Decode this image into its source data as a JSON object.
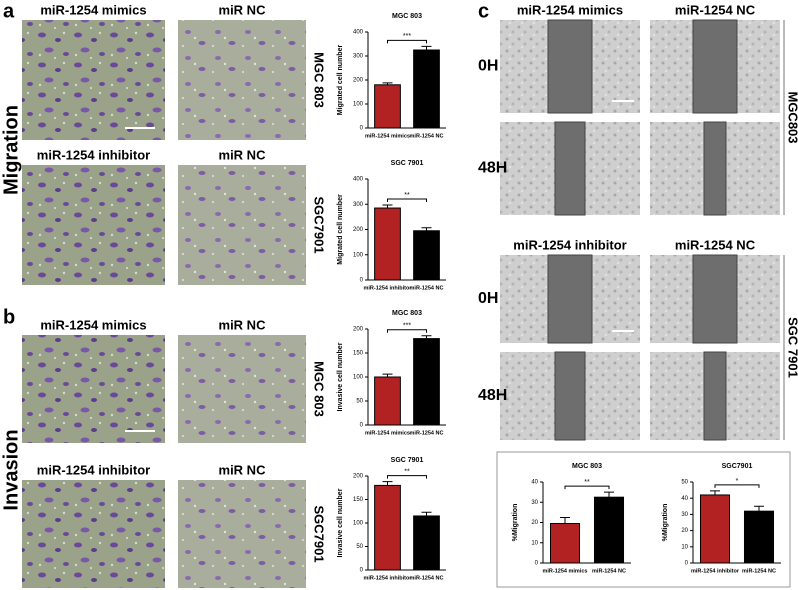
{
  "panel_a": {
    "label": "a",
    "side": "Migration",
    "rows": [
      {
        "captions": [
          "miR-1254 mimics",
          "miR NC"
        ],
        "cell_line": "MGC 803"
      },
      {
        "captions": [
          "miR-1254 inhibitor",
          "miR NC"
        ],
        "cell_line": "SGC7901"
      }
    ]
  },
  "panel_b": {
    "label": "b",
    "side": "Invasion",
    "rows": [
      {
        "captions": [
          "miR-1254 mimics",
          "miR NC"
        ],
        "cell_line": "MGC 803"
      },
      {
        "captions": [
          "miR-1254 inhibitor",
          "miR NC"
        ],
        "cell_line": "SGC7901"
      }
    ]
  },
  "panel_c": {
    "label": "c",
    "blocks": [
      {
        "captions": [
          "miR-1254 mimics",
          "miR-1254 NC"
        ],
        "cell_line": "MGC803",
        "times": [
          "0H",
          "48H"
        ]
      },
      {
        "captions": [
          "miR-1254 inhibitor",
          "miR-1254 NC"
        ],
        "cell_line": "SGC 7901",
        "times": [
          "0H",
          "48H"
        ]
      }
    ]
  },
  "chart_data": [
    {
      "type": "bar",
      "title": "MGC 803",
      "y_label": "Migrated cell number",
      "categories": [
        "miR-1254 mimics",
        "miR-1254 NC"
      ],
      "values": [
        180,
        325
      ],
      "errors": [
        8,
        15
      ],
      "colors": [
        "#b22222",
        "#000000"
      ],
      "ylim": [
        0,
        400
      ],
      "yticks": [
        0,
        100,
        200,
        300,
        400
      ],
      "significance": "***"
    },
    {
      "type": "bar",
      "title": "SGC 7901",
      "y_label": "Migrated cell number",
      "categories": [
        "miR-1254 inhibitor",
        "miR-1254 NC"
      ],
      "values": [
        285,
        195
      ],
      "errors": [
        12,
        12
      ],
      "colors": [
        "#b22222",
        "#000000"
      ],
      "ylim": [
        0,
        400
      ],
      "yticks": [
        0,
        100,
        200,
        300,
        400
      ],
      "significance": "**"
    },
    {
      "type": "bar",
      "title": "MGC 803",
      "y_label": "Invasive cell number",
      "categories": [
        "miR-1254 mimics",
        "miR-1254 NC"
      ],
      "values": [
        100,
        180
      ],
      "errors": [
        6,
        6
      ],
      "colors": [
        "#b22222",
        "#000000"
      ],
      "ylim": [
        0,
        200
      ],
      "yticks": [
        0,
        50,
        100,
        150,
        200
      ],
      "significance": "***"
    },
    {
      "type": "bar",
      "title": "SGC 7901",
      "y_label": "Invasive cell number",
      "categories": [
        "miR-1254 inhibitor",
        "miR-1254 NC"
      ],
      "values": [
        180,
        115
      ],
      "errors": [
        8,
        8
      ],
      "colors": [
        "#b22222",
        "#000000"
      ],
      "ylim": [
        0,
        200
      ],
      "yticks": [
        0,
        50,
        100,
        150,
        200
      ],
      "significance": "**"
    },
    {
      "type": "bar",
      "title": "MGC 803",
      "y_label": "%Migration",
      "categories": [
        "miR-1254 mimics",
        "miR-1254 NC"
      ],
      "values": [
        19.5,
        32.5
      ],
      "errors": [
        3,
        2.5
      ],
      "colors": [
        "#b22222",
        "#000000"
      ],
      "ylim": [
        0,
        40
      ],
      "yticks": [
        0,
        10,
        20,
        30,
        40
      ],
      "significance": "**"
    },
    {
      "type": "bar",
      "title": "SGC7901",
      "y_label": "%Migration",
      "categories": [
        "miR-1254 inhibitor",
        "miR-1254 NC"
      ],
      "values": [
        42,
        32
      ],
      "errors": [
        2.5,
        3
      ],
      "colors": [
        "#b22222",
        "#000000"
      ],
      "ylim": [
        0,
        50
      ],
      "yticks": [
        0,
        10,
        20,
        30,
        40,
        50
      ],
      "significance": "*"
    }
  ]
}
